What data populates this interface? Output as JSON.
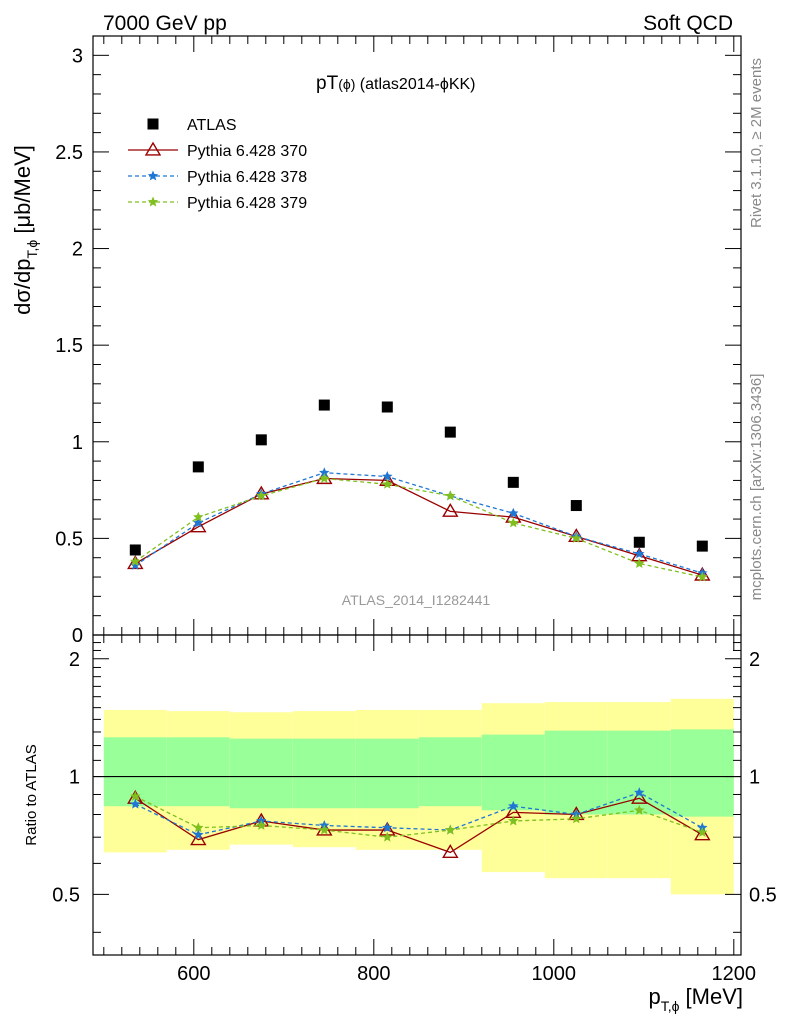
{
  "header": {
    "left": "7000 GeV pp",
    "right": "Soft QCD"
  },
  "side_labels": {
    "rivet": "Rivet 3.1.10, ≥ 2M events",
    "mcplots": "mcplots.cern.ch [arXiv:1306.3436]"
  },
  "plot_title": "pT(ϕ) (atlas2014-ϕKK)",
  "watermark": "ATLAS_2014_I1282441",
  "chart_data": [
    {
      "type": "scatter",
      "panel": "main",
      "ylabel": "dσ/dp_{T,ϕ} [μb/MeV]",
      "xlim": [
        488,
        1208
      ],
      "ylim": [
        0,
        3.1
      ],
      "y_ticks": [
        0,
        0.5,
        1,
        1.5,
        2,
        2.5,
        3
      ],
      "y_tick_labels": [
        "0",
        "0.5",
        "1",
        "1.5",
        "2",
        "2.5",
        "3"
      ],
      "legend_position": "top-left",
      "x": [
        535,
        605,
        675,
        745,
        815,
        885,
        955,
        1025,
        1095,
        1165
      ],
      "series": [
        {
          "name": "ATLAS",
          "color": "#000000",
          "marker": "square",
          "line": "none",
          "values": [
            0.44,
            0.87,
            1.01,
            1.19,
            1.18,
            1.05,
            0.79,
            0.67,
            0.48,
            0.46
          ]
        },
        {
          "name": "Pythia 6.428 370",
          "color": "#990000",
          "marker": "triangle-open",
          "line": "solid",
          "values": [
            0.37,
            0.56,
            0.73,
            0.81,
            0.8,
            0.64,
            0.61,
            0.51,
            0.41,
            0.31
          ]
        },
        {
          "name": "Pythia 6.428 378",
          "color": "#1f77d4",
          "marker": "star",
          "line": "dashed",
          "values": [
            0.36,
            0.58,
            0.73,
            0.84,
            0.82,
            0.72,
            0.63,
            0.51,
            0.42,
            0.32
          ]
        },
        {
          "name": "Pythia 6.428 379",
          "color": "#7fbf1f",
          "marker": "star",
          "line": "dashed",
          "values": [
            0.38,
            0.61,
            0.72,
            0.81,
            0.78,
            0.72,
            0.58,
            0.5,
            0.37,
            0.3
          ]
        }
      ]
    },
    {
      "type": "line",
      "panel": "ratio",
      "xlabel": "p_{T,ϕ} [MeV]",
      "ylabel": "Ratio to ATLAS",
      "xlim": [
        488,
        1208
      ],
      "ylim": [
        0.35,
        2.3
      ],
      "x_ticks": [
        600,
        800,
        1000,
        1200
      ],
      "x_tick_labels": [
        "600",
        "800",
        "1000",
        "1200"
      ],
      "y_ticks": [
        0.5,
        1,
        2
      ],
      "y_tick_labels": [
        "0.5",
        "1",
        "2"
      ],
      "reference": 1,
      "bands": {
        "edges": [
          500,
          570,
          640,
          710,
          780,
          850,
          920,
          990,
          1060,
          1130,
          1200
        ],
        "yellow_low": [
          0.64,
          0.65,
          0.67,
          0.66,
          0.65,
          0.65,
          0.57,
          0.55,
          0.55,
          0.5
        ],
        "yellow_high": [
          1.48,
          1.47,
          1.46,
          1.47,
          1.48,
          1.48,
          1.54,
          1.55,
          1.55,
          1.58
        ],
        "green_low": [
          0.84,
          0.84,
          0.83,
          0.83,
          0.83,
          0.84,
          0.82,
          0.8,
          0.8,
          0.79
        ],
        "green_high": [
          1.26,
          1.26,
          1.25,
          1.25,
          1.25,
          1.26,
          1.28,
          1.31,
          1.31,
          1.32
        ]
      },
      "x": [
        535,
        605,
        675,
        745,
        815,
        885,
        955,
        1025,
        1095,
        1165
      ],
      "series": [
        {
          "name": "Pythia 6.428 370",
          "color": "#990000",
          "marker": "triangle-open",
          "line": "solid",
          "values": [
            0.88,
            0.69,
            0.77,
            0.73,
            0.73,
            0.64,
            0.81,
            0.8,
            0.88,
            0.71
          ]
        },
        {
          "name": "Pythia 6.428 378",
          "color": "#1f77d4",
          "marker": "star",
          "line": "dashed",
          "values": [
            0.85,
            0.71,
            0.77,
            0.75,
            0.74,
            0.73,
            0.84,
            0.8,
            0.91,
            0.74
          ]
        },
        {
          "name": "Pythia 6.428 379",
          "color": "#7fbf1f",
          "marker": "star",
          "line": "dashed",
          "values": [
            0.89,
            0.74,
            0.75,
            0.73,
            0.7,
            0.73,
            0.77,
            0.78,
            0.82,
            0.72
          ]
        }
      ]
    }
  ]
}
